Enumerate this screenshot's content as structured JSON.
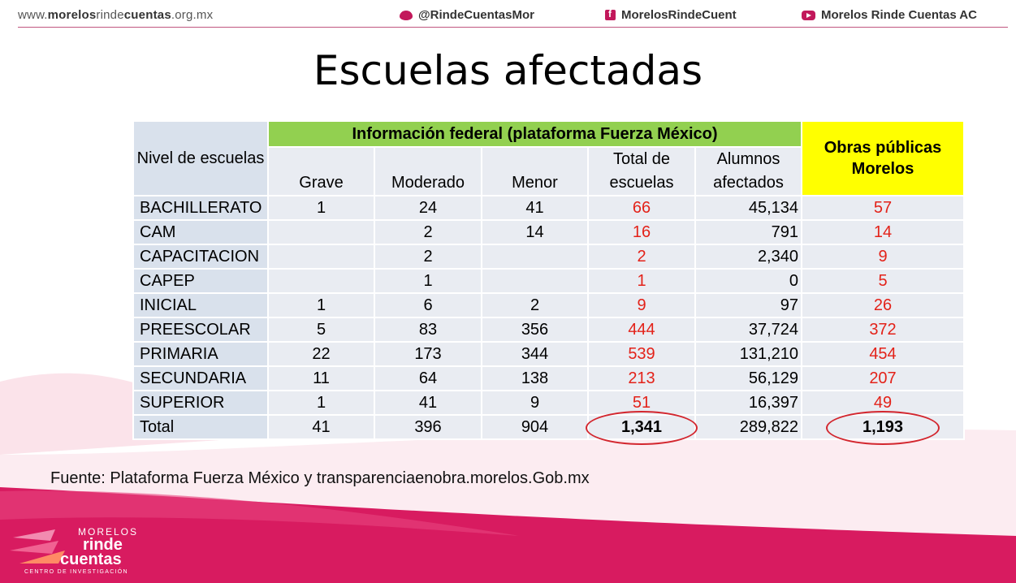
{
  "header": {
    "site_prefix": "www.",
    "site_bold": "morelos",
    "site_mid": "rinde",
    "site_bold2": "cuentas",
    "site_suffix": ".org.mx",
    "twitter": "@RindeCuentasMor",
    "facebook": "MorelosRindeCuent",
    "youtube": "Morelos Rinde Cuentas AC"
  },
  "title": "Escuelas afectadas",
  "table": {
    "col_nivel": "Nivel de escuelas",
    "group_federal": "Información federal (plataforma Fuerza México)",
    "col_obras": "Obras públicas Morelos",
    "sub_headers": [
      "Grave",
      "Moderado",
      "Menor",
      "Total de escuelas",
      "Alumnos afectados"
    ],
    "rows": [
      {
        "nivel": "BACHILLERATO",
        "grave": "1",
        "moderado": "24",
        "menor": "41",
        "total": "66",
        "alumnos": "45,134",
        "obras": "57"
      },
      {
        "nivel": "CAM",
        "grave": "",
        "moderado": "2",
        "menor": "14",
        "total": "16",
        "alumnos": "791",
        "obras": "14"
      },
      {
        "nivel": "CAPACITACION",
        "grave": "",
        "moderado": "2",
        "menor": "",
        "total": "2",
        "alumnos": "2,340",
        "obras": "9"
      },
      {
        "nivel": "CAPEP",
        "grave": "",
        "moderado": "1",
        "menor": "",
        "total": "1",
        "alumnos": "0",
        "obras": "5"
      },
      {
        "nivel": "INICIAL",
        "grave": "1",
        "moderado": "6",
        "menor": "2",
        "total": "9",
        "alumnos": "97",
        "obras": "26"
      },
      {
        "nivel": "PREESCOLAR",
        "grave": "5",
        "moderado": "83",
        "menor": "356",
        "total": "444",
        "alumnos": "37,724",
        "obras": "372"
      },
      {
        "nivel": "PRIMARIA",
        "grave": "22",
        "moderado": "173",
        "menor": "344",
        "total": "539",
        "alumnos": "131,210",
        "obras": "454"
      },
      {
        "nivel": "SECUNDARIA",
        "grave": "11",
        "moderado": "64",
        "menor": "138",
        "total": "213",
        "alumnos": "56,129",
        "obras": "207"
      },
      {
        "nivel": "SUPERIOR",
        "grave": "1",
        "moderado": "41",
        "menor": "9",
        "total": "51",
        "alumnos": "16,397",
        "obras": "49"
      }
    ],
    "total_row": {
      "nivel": "Total",
      "grave": "41",
      "moderado": "396",
      "menor": "904",
      "total": "1,341",
      "alumnos": "289,822",
      "obras": "1,193"
    }
  },
  "source": "Fuente: Plataforma Fuerza México y transparenciaenobra.morelos.Gob.mx",
  "logo": {
    "line1": "MORELOS",
    "line2": "rinde",
    "line3": "cuentas",
    "line4": "CENTRO DE INVESTIGACIÓN"
  },
  "colors": {
    "brand_pink": "#d81b60",
    "federal_green": "#92d050",
    "obras_yellow": "#ffff00",
    "highlight_red": "#e32219"
  }
}
